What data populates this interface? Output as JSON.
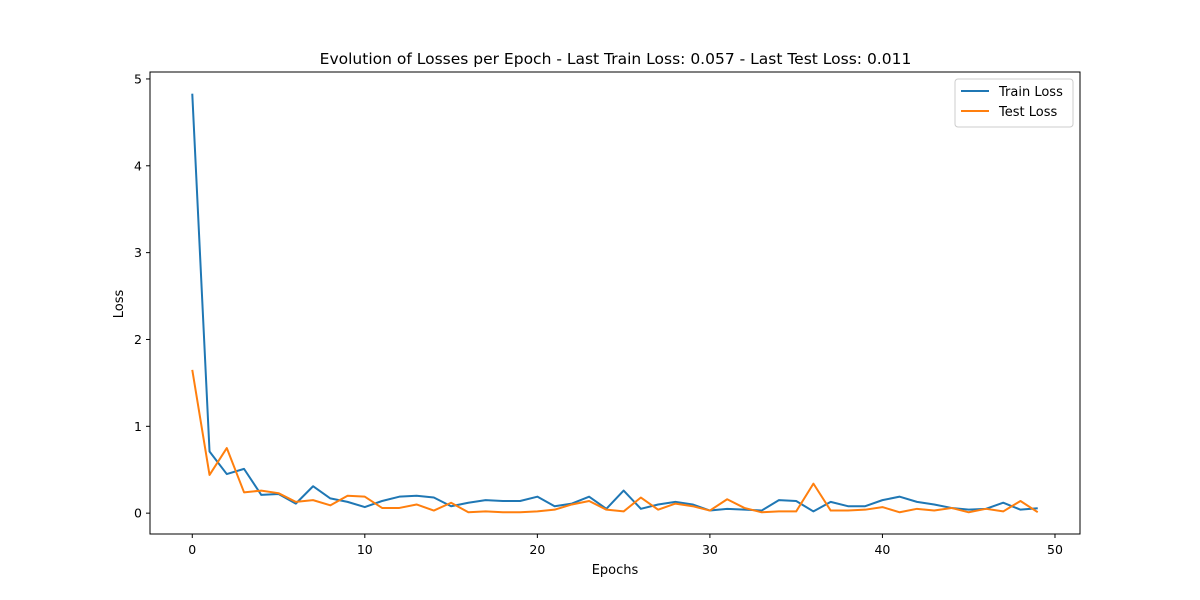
{
  "chart_data": {
    "type": "line",
    "title": "Evolution of Losses per Epoch - Last Train Loss: 0.057 - Last Test Loss: 0.011",
    "xlabel": "Epochs",
    "ylabel": "Loss",
    "xlim": [
      -2.45,
      51.45
    ],
    "ylim": [
      -0.24,
      5.08
    ],
    "xticks": [
      0,
      10,
      20,
      30,
      40,
      50
    ],
    "yticks": [
      0,
      1,
      2,
      3,
      4,
      5
    ],
    "grid": false,
    "legend_position": "top-right",
    "x": [
      0,
      1,
      2,
      3,
      4,
      5,
      6,
      7,
      8,
      9,
      10,
      11,
      12,
      13,
      14,
      15,
      16,
      17,
      18,
      19,
      20,
      21,
      22,
      23,
      24,
      25,
      26,
      27,
      28,
      29,
      30,
      31,
      32,
      33,
      34,
      35,
      36,
      37,
      38,
      39,
      40,
      41,
      42,
      43,
      44,
      45,
      46,
      47,
      48,
      49
    ],
    "series": [
      {
        "name": "Train Loss",
        "color": "#1f77b4",
        "values": [
          4.83,
          0.71,
          0.45,
          0.51,
          0.21,
          0.22,
          0.11,
          0.31,
          0.17,
          0.13,
          0.07,
          0.14,
          0.19,
          0.2,
          0.18,
          0.08,
          0.12,
          0.15,
          0.14,
          0.14,
          0.19,
          0.08,
          0.11,
          0.19,
          0.05,
          0.26,
          0.05,
          0.1,
          0.13,
          0.1,
          0.03,
          0.05,
          0.04,
          0.03,
          0.15,
          0.14,
          0.02,
          0.13,
          0.08,
          0.08,
          0.15,
          0.19,
          0.13,
          0.1,
          0.06,
          0.04,
          0.05,
          0.12,
          0.04,
          0.057
        ]
      },
      {
        "name": "Test Loss",
        "color": "#ff7f0e",
        "values": [
          1.65,
          0.44,
          0.75,
          0.24,
          0.26,
          0.23,
          0.13,
          0.15,
          0.09,
          0.2,
          0.19,
          0.06,
          0.06,
          0.1,
          0.03,
          0.12,
          0.01,
          0.02,
          0.01,
          0.01,
          0.02,
          0.04,
          0.1,
          0.14,
          0.04,
          0.02,
          0.18,
          0.04,
          0.11,
          0.08,
          0.03,
          0.16,
          0.06,
          0.01,
          0.02,
          0.02,
          0.34,
          0.03,
          0.03,
          0.04,
          0.07,
          0.01,
          0.05,
          0.03,
          0.06,
          0.01,
          0.05,
          0.02,
          0.14,
          0.011
        ]
      }
    ]
  }
}
